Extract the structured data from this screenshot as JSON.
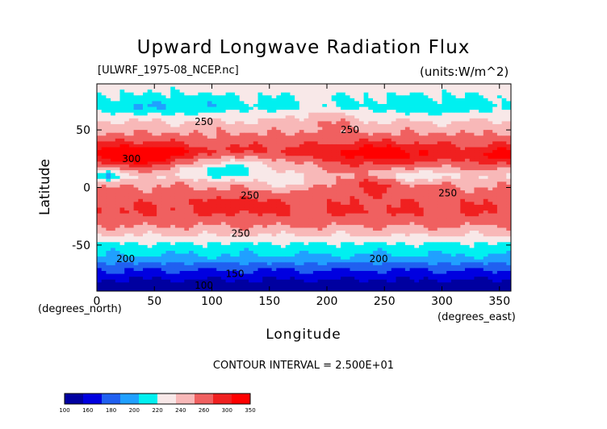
{
  "chart_data": {
    "type": "heatmap",
    "title": "Upward Longwave Radiation Flux",
    "dataset_label": "[ULWRF_1975-08_NCEP.nc]",
    "units_label": "(units:W/m^2)",
    "xlabel": "Longitude",
    "ylabel": "Latitude",
    "x_unit_label": "(degrees_east)",
    "y_unit_label": "(degrees_north)",
    "xlim": [
      0,
      360
    ],
    "ylim": [
      -90,
      90
    ],
    "x_ticks": [
      0,
      50,
      100,
      150,
      200,
      250,
      300,
      350
    ],
    "y_ticks": [
      -50,
      0,
      50
    ],
    "contour_interval_text": "CONTOUR INTERVAL = 2.500E+01",
    "contour_labels": [
      {
        "text": "250",
        "lon": 93,
        "lat": 57
      },
      {
        "text": "250",
        "lon": 220,
        "lat": 50
      },
      {
        "text": "300",
        "lon": 30,
        "lat": 25
      },
      {
        "text": "250",
        "lon": 133,
        "lat": -7
      },
      {
        "text": "250",
        "lon": 305,
        "lat": -5
      },
      {
        "text": "250",
        "lon": 125,
        "lat": -40
      },
      {
        "text": "200",
        "lon": 25,
        "lat": -62
      },
      {
        "text": "200",
        "lon": 245,
        "lat": -62
      },
      {
        "text": "150",
        "lon": 120,
        "lat": -75
      },
      {
        "text": "100",
        "lon": 93,
        "lat": -85
      }
    ],
    "colorbar": {
      "tick_labels": [
        "100",
        "160",
        "180",
        "200",
        "220",
        "240",
        "260",
        "300",
        "350"
      ],
      "levels": [
        100,
        140,
        160,
        180,
        200,
        220,
        240,
        260,
        280,
        300,
        350
      ],
      "colors": [
        "#0000A0",
        "#0000E0",
        "#2060F0",
        "#20A0FF",
        "#00F0F0",
        "#F8E8E8",
        "#F8B8B8",
        "#F06060",
        "#F02020",
        "#FF0000"
      ]
    },
    "zonal_profile": [
      {
        "lat": 90,
        "value": 230
      },
      {
        "lat": 80,
        "value": 222
      },
      {
        "lat": 70,
        "value": 215
      },
      {
        "lat": 60,
        "value": 238
      },
      {
        "lat": 50,
        "value": 255
      },
      {
        "lat": 40,
        "value": 272
      },
      {
        "lat": 30,
        "value": 292
      },
      {
        "lat": 20,
        "value": 270
      },
      {
        "lat": 10,
        "value": 240
      },
      {
        "lat": 0,
        "value": 262
      },
      {
        "lat": -10,
        "value": 275
      },
      {
        "lat": -20,
        "value": 282
      },
      {
        "lat": -30,
        "value": 268
      },
      {
        "lat": -40,
        "value": 245
      },
      {
        "lat": -50,
        "value": 215
      },
      {
        "lat": -60,
        "value": 198
      },
      {
        "lat": -70,
        "value": 165
      },
      {
        "lat": -80,
        "value": 140
      },
      {
        "lat": -90,
        "value": 120
      }
    ],
    "anomalies": [
      {
        "lon": 30,
        "lat": 27,
        "rx": 32,
        "ry": 10,
        "delta": 35
      },
      {
        "lon": 55,
        "lat": 30,
        "rx": 20,
        "ry": 8,
        "delta": 20
      },
      {
        "lon": 245,
        "lat": 30,
        "rx": 40,
        "ry": 10,
        "delta": 25
      },
      {
        "lon": 350,
        "lat": 27,
        "rx": 15,
        "ry": 8,
        "delta": 25
      },
      {
        "lon": 130,
        "lat": 20,
        "rx": 45,
        "ry": 10,
        "delta": -35
      },
      {
        "lon": 105,
        "lat": 15,
        "rx": 25,
        "ry": 8,
        "delta": -25
      },
      {
        "lon": 10,
        "lat": 10,
        "rx": 12,
        "ry": 6,
        "delta": -45
      },
      {
        "lon": 275,
        "lat": 10,
        "rx": 25,
        "ry": 7,
        "delta": -30
      },
      {
        "lon": 240,
        "lat": 5,
        "rx": 45,
        "ry": 10,
        "delta": 30
      },
      {
        "lon": 170,
        "lat": 3,
        "rx": 35,
        "ry": 6,
        "delta": -20
      },
      {
        "lon": 120,
        "lat": -15,
        "rx": 30,
        "ry": 6,
        "delta": 15
      },
      {
        "lon": 60,
        "lat": 70,
        "rx": 60,
        "ry": 10,
        "delta": -15
      },
      {
        "lon": 290,
        "lat": 68,
        "rx": 45,
        "ry": 10,
        "delta": -10
      },
      {
        "lon": 200,
        "lat": 60,
        "rx": 20,
        "ry": 10,
        "delta": 20
      }
    ]
  }
}
